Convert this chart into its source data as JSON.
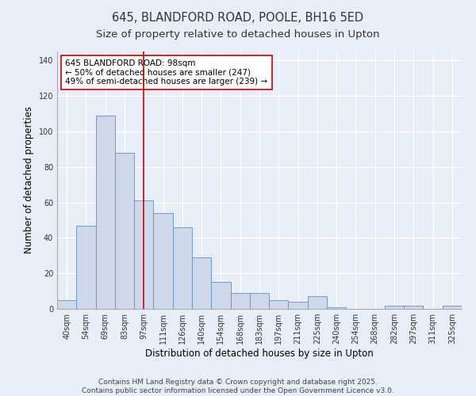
{
  "title": "645, BLANDFORD ROAD, POOLE, BH16 5ED",
  "subtitle": "Size of property relative to detached houses in Upton",
  "xlabel": "Distribution of detached houses by size in Upton",
  "ylabel": "Number of detached properties",
  "categories": [
    "40sqm",
    "54sqm",
    "69sqm",
    "83sqm",
    "97sqm",
    "111sqm",
    "126sqm",
    "140sqm",
    "154sqm",
    "168sqm",
    "183sqm",
    "197sqm",
    "211sqm",
    "225sqm",
    "240sqm",
    "254sqm",
    "268sqm",
    "282sqm",
    "297sqm",
    "311sqm",
    "325sqm"
  ],
  "values": [
    5,
    47,
    109,
    88,
    61,
    54,
    46,
    29,
    15,
    9,
    9,
    5,
    4,
    7,
    1,
    0,
    0,
    2,
    2,
    0,
    2
  ],
  "bar_color": "#cdd9ea",
  "bar_edge_color": "#6090c0",
  "vline_x_index": 4,
  "vline_color": "#cc0000",
  "annotation_text": "645 BLANDFORD ROAD: 98sqm\n← 50% of detached houses are smaller (247)\n49% of semi-detached houses are larger (239) →",
  "annotation_box_color": "#ffffff",
  "annotation_box_edge": "#cc0000",
  "ylim": [
    0,
    145
  ],
  "yticks": [
    0,
    20,
    40,
    60,
    80,
    100,
    120,
    140
  ],
  "footer_line1": "Contains HM Land Registry data © Crown copyright and database right 2025.",
  "footer_line2": "Contains public sector information licensed under the Open Government Licence v3.0.",
  "bg_color": "#e8eef8",
  "plot_bg_color": "#e8eef8",
  "title_fontsize": 10.5,
  "subtitle_fontsize": 9.5,
  "label_fontsize": 8.5,
  "tick_fontsize": 7,
  "annotation_fontsize": 7.5,
  "footer_fontsize": 6.5
}
